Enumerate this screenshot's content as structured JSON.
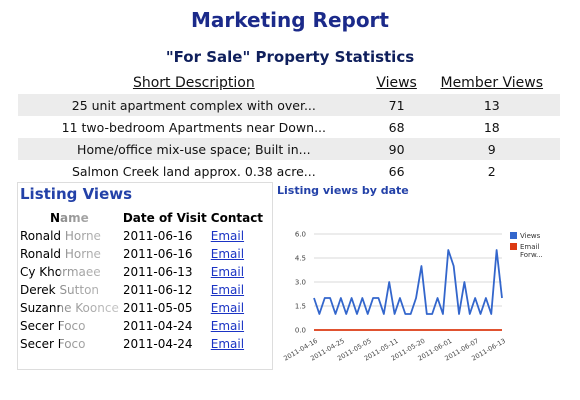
{
  "header": {
    "title": "Marketing Report",
    "subtitle": "\"For Sale\" Property Statistics"
  },
  "property_table": {
    "columns": [
      "Short Description",
      "Views",
      "Member Views"
    ],
    "rows": [
      [
        "25 unit apartment complex with over...",
        71,
        13
      ],
      [
        "11 two-bedroom Apartments near Down...",
        68,
        18
      ],
      [
        "Home/office mix-use space; Built in...",
        90,
        9
      ],
      [
        "Salmon Creek land approx. 0.38 acre...",
        66,
        2
      ]
    ]
  },
  "listing_views": {
    "title": "Listing Views",
    "columns": [
      "Name",
      "Date of Visit",
      "Contact"
    ],
    "rows": [
      [
        "Ronald Horne",
        "2011-06-16",
        "Email"
      ],
      [
        "Ronald Horne",
        "2011-06-16",
        "Email"
      ],
      [
        "Cy Khormaee",
        "2011-06-13",
        "Email"
      ],
      [
        "Derek Sutton",
        "2011-06-12",
        "Email"
      ],
      [
        "Suzanne Koonce",
        "2011-05-05",
        "Email"
      ],
      [
        "Secer Foco",
        "2011-04-24",
        "Email"
      ],
      [
        "Secer Foco",
        "2011-04-24",
        "Email"
      ]
    ]
  },
  "chart_data": {
    "type": "line",
    "title": "Listing views by date",
    "categories": [
      "2011-04-16",
      null,
      null,
      null,
      null,
      "2011-04-25",
      null,
      null,
      null,
      null,
      "2011-05-05",
      null,
      null,
      null,
      null,
      "2011-05-11",
      null,
      null,
      null,
      null,
      "2011-05-20",
      null,
      null,
      null,
      null,
      "2011-06-01",
      null,
      null,
      null,
      null,
      "2011-06-07",
      null,
      null,
      null,
      null,
      "2011-06-13"
    ],
    "series": [
      {
        "name": "Views",
        "color": "#3366cc",
        "values": [
          2,
          1,
          2,
          2,
          1,
          2,
          1,
          2,
          1,
          2,
          1,
          2,
          2,
          1,
          3,
          1,
          2,
          1,
          1,
          2,
          4,
          1,
          1,
          2,
          1,
          5,
          4,
          1,
          3,
          1,
          2,
          1,
          2,
          1,
          5,
          2
        ]
      },
      {
        "name": "Email Forw...",
        "color": "#dc3912",
        "values": [
          0,
          0,
          0,
          0,
          0,
          0,
          0,
          0,
          0,
          0,
          0,
          0,
          0,
          0,
          0,
          0,
          0,
          0,
          0,
          0,
          0,
          0,
          0,
          0,
          0,
          0,
          0,
          0,
          0,
          0,
          0,
          0,
          0,
          0,
          0,
          0
        ]
      }
    ],
    "ylim": [
      0,
      6
    ],
    "yticks": [
      {
        "value": 0,
        "label": "0.0"
      },
      {
        "value": 1.5,
        "label": "1.5"
      },
      {
        "value": 3,
        "label": "3.0"
      },
      {
        "value": 4.5,
        "label": "4.5"
      },
      {
        "value": 6,
        "label": "6.0"
      }
    ],
    "grid": true,
    "legend": "right"
  }
}
